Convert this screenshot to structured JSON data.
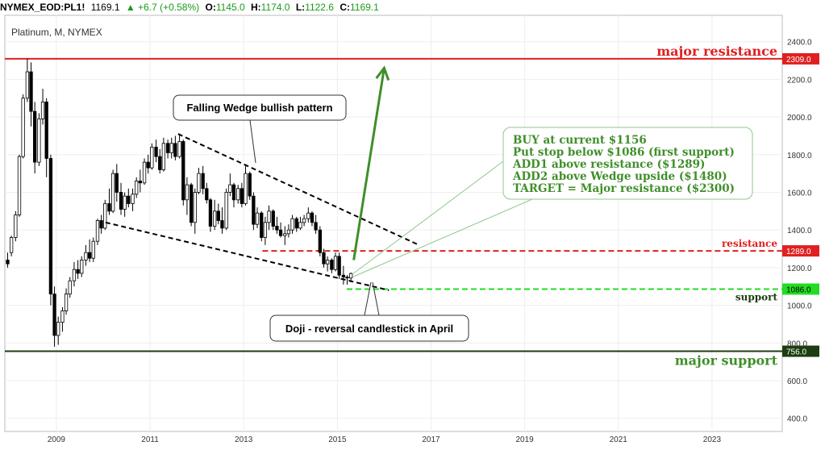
{
  "header": {
    "symbol": "NYMEX_EOD:PL1!",
    "last": "1169.1",
    "change": "+6.7 (+0.58%)",
    "o_label": "O:",
    "o_value": "1145.0",
    "h_label": "H:",
    "h_value": "1174.0",
    "l_label": "L:",
    "l_value": "1122.6",
    "c_label": "C:",
    "c_value": "1169.1",
    "up_color": "#1a9a1a"
  },
  "chart_data": {
    "type": "candlestick",
    "title": "Platinum, M, NYMEX",
    "x_ticks": [
      "2009",
      "2011",
      "2013",
      "2015",
      "2017",
      "2019",
      "2021",
      "2023"
    ],
    "y_ticks": [
      "400.0",
      "600.0",
      "800.0",
      "1000.0",
      "1200.0",
      "1400.0",
      "1600.0",
      "1800.0",
      "2000.0",
      "2200.0",
      "2400.0"
    ],
    "ylim": [
      330,
      2540
    ],
    "xlim": [
      2007.9,
      2024.5
    ],
    "levels": [
      {
        "name": "major-resistance",
        "value": 2309.0,
        "label": "2309.0",
        "text": "major resistance",
        "color": "#e02020"
      },
      {
        "name": "resistance",
        "value": 1289.0,
        "label": "1289.0",
        "text": "resistance",
        "color": "#e02020"
      },
      {
        "name": "support",
        "value": 1086.0,
        "label": "1086.0",
        "text": "support",
        "color": "#22dd22"
      },
      {
        "name": "major-support",
        "value": 756.0,
        "label": "756.0",
        "text": "major support",
        "color": "#1c3d10"
      }
    ],
    "wedge_upper": [
      [
        2011.6,
        1910
      ],
      [
        2016.7,
        1325
      ]
    ],
    "wedge_lower": [
      [
        2010.05,
        1440
      ],
      [
        2016.1,
        1080
      ]
    ],
    "target_arrow": [
      [
        2015.35,
        1240
      ],
      [
        2016.0,
        2260
      ]
    ],
    "annotations": {
      "wedge_note": "Falling Wedge bullish pattern",
      "doji_note": "Doji - reversal candlestick in April",
      "plan_lines": [
        "BUY at current $1156",
        "Put stop below $1086 (first support)",
        "ADD1 above resistance ($1289)",
        "ADD2 above Wedge upside ($1480)",
        "TARGET = Major resistance ($2300)"
      ]
    },
    "candles": [
      [
        2007.96,
        1240,
        1280,
        1200,
        1220
      ],
      [
        2008.04,
        1280,
        1370,
        1260,
        1360
      ],
      [
        2008.13,
        1360,
        1500,
        1340,
        1480
      ],
      [
        2008.21,
        1480,
        1800,
        1470,
        1790
      ],
      [
        2008.29,
        1790,
        2120,
        1780,
        2100
      ],
      [
        2008.38,
        2100,
        2310,
        2080,
        2240
      ],
      [
        2008.46,
        2240,
        2290,
        1950,
        2030
      ],
      [
        2008.54,
        2030,
        2080,
        1700,
        1760
      ],
      [
        2008.63,
        1760,
        2020,
        1740,
        1990
      ],
      [
        2008.71,
        1990,
        2150,
        1960,
        2080
      ],
      [
        2008.79,
        2080,
        2100,
        1680,
        1780
      ],
      [
        2008.88,
        1780,
        1800,
        1000,
        1060
      ],
      [
        2008.96,
        1060,
        1100,
        780,
        840
      ],
      [
        2009.04,
        840,
        940,
        790,
        910
      ],
      [
        2009.13,
        910,
        990,
        860,
        970
      ],
      [
        2009.21,
        970,
        1090,
        950,
        1060
      ],
      [
        2009.29,
        1060,
        1150,
        1040,
        1130
      ],
      [
        2009.38,
        1130,
        1230,
        1100,
        1190
      ],
      [
        2009.46,
        1190,
        1240,
        1140,
        1170
      ],
      [
        2009.54,
        1170,
        1260,
        1150,
        1240
      ],
      [
        2009.63,
        1240,
        1320,
        1210,
        1280
      ],
      [
        2009.71,
        1280,
        1350,
        1230,
        1250
      ],
      [
        2009.79,
        1250,
        1360,
        1230,
        1340
      ],
      [
        2009.88,
        1340,
        1460,
        1320,
        1450
      ],
      [
        2009.96,
        1450,
        1480,
        1380,
        1410
      ],
      [
        2010.04,
        1410,
        1560,
        1400,
        1540
      ],
      [
        2010.13,
        1540,
        1620,
        1480,
        1500
      ],
      [
        2010.21,
        1500,
        1720,
        1490,
        1700
      ],
      [
        2010.29,
        1700,
        1750,
        1550,
        1600
      ],
      [
        2010.38,
        1600,
        1650,
        1480,
        1510
      ],
      [
        2010.46,
        1510,
        1600,
        1470,
        1580
      ],
      [
        2010.54,
        1580,
        1620,
        1520,
        1540
      ],
      [
        2010.63,
        1540,
        1620,
        1500,
        1590
      ],
      [
        2010.71,
        1590,
        1680,
        1570,
        1660
      ],
      [
        2010.79,
        1660,
        1720,
        1600,
        1650
      ],
      [
        2010.88,
        1650,
        1780,
        1640,
        1760
      ],
      [
        2010.96,
        1760,
        1800,
        1700,
        1730
      ],
      [
        2011.04,
        1730,
        1860,
        1720,
        1840
      ],
      [
        2011.13,
        1840,
        1880,
        1760,
        1790
      ],
      [
        2011.21,
        1790,
        1830,
        1700,
        1720
      ],
      [
        2011.29,
        1720,
        1890,
        1710,
        1860
      ],
      [
        2011.38,
        1860,
        1880,
        1780,
        1810
      ],
      [
        2011.46,
        1810,
        1890,
        1780,
        1860
      ],
      [
        2011.54,
        1860,
        1900,
        1770,
        1790
      ],
      [
        2011.63,
        1790,
        1910,
        1780,
        1870
      ],
      [
        2011.71,
        1870,
        1880,
        1530,
        1560
      ],
      [
        2011.79,
        1560,
        1680,
        1480,
        1640
      ],
      [
        2011.88,
        1640,
        1650,
        1420,
        1440
      ],
      [
        2011.96,
        1440,
        1620,
        1380,
        1600
      ],
      [
        2012.04,
        1600,
        1730,
        1590,
        1700
      ],
      [
        2012.13,
        1700,
        1740,
        1590,
        1620
      ],
      [
        2012.21,
        1620,
        1650,
        1540,
        1560
      ],
      [
        2012.29,
        1560,
        1570,
        1390,
        1420
      ],
      [
        2012.38,
        1420,
        1560,
        1400,
        1500
      ],
      [
        2012.46,
        1500,
        1540,
        1430,
        1450
      ],
      [
        2012.54,
        1450,
        1520,
        1380,
        1410
      ],
      [
        2012.63,
        1410,
        1620,
        1400,
        1600
      ],
      [
        2012.71,
        1600,
        1700,
        1580,
        1640
      ],
      [
        2012.79,
        1640,
        1650,
        1520,
        1560
      ],
      [
        2012.88,
        1560,
        1640,
        1540,
        1620
      ],
      [
        2012.96,
        1620,
        1650,
        1520,
        1540
      ],
      [
        2013.04,
        1540,
        1740,
        1530,
        1700
      ],
      [
        2013.13,
        1700,
        1710,
        1560,
        1580
      ],
      [
        2013.21,
        1580,
        1600,
        1400,
        1430
      ],
      [
        2013.29,
        1430,
        1520,
        1410,
        1490
      ],
      [
        2013.38,
        1490,
        1500,
        1340,
        1360
      ],
      [
        2013.46,
        1360,
        1470,
        1320,
        1440
      ],
      [
        2013.54,
        1440,
        1530,
        1400,
        1500
      ],
      [
        2013.63,
        1500,
        1510,
        1400,
        1420
      ],
      [
        2013.71,
        1420,
        1470,
        1380,
        1400
      ],
      [
        2013.79,
        1400,
        1440,
        1360,
        1370
      ],
      [
        2013.88,
        1370,
        1420,
        1320,
        1380
      ],
      [
        2013.96,
        1380,
        1430,
        1360,
        1400
      ],
      [
        2014.04,
        1400,
        1480,
        1380,
        1460
      ],
      [
        2014.13,
        1460,
        1470,
        1390,
        1410
      ],
      [
        2014.21,
        1410,
        1470,
        1400,
        1440
      ],
      [
        2014.29,
        1440,
        1480,
        1420,
        1460
      ],
      [
        2014.38,
        1460,
        1520,
        1440,
        1490
      ],
      [
        2014.46,
        1490,
        1500,
        1420,
        1440
      ],
      [
        2014.54,
        1440,
        1480,
        1380,
        1400
      ],
      [
        2014.63,
        1400,
        1420,
        1260,
        1280
      ],
      [
        2014.71,
        1280,
        1300,
        1200,
        1220
      ],
      [
        2014.79,
        1220,
        1260,
        1180,
        1240
      ],
      [
        2014.88,
        1240,
        1250,
        1170,
        1190
      ],
      [
        2014.96,
        1190,
        1280,
        1180,
        1260
      ],
      [
        2015.04,
        1260,
        1280,
        1140,
        1160
      ],
      [
        2015.13,
        1160,
        1210,
        1110,
        1150
      ],
      [
        2015.21,
        1150,
        1160,
        1110,
        1145
      ],
      [
        2015.29,
        1145,
        1174,
        1122,
        1169
      ]
    ]
  }
}
